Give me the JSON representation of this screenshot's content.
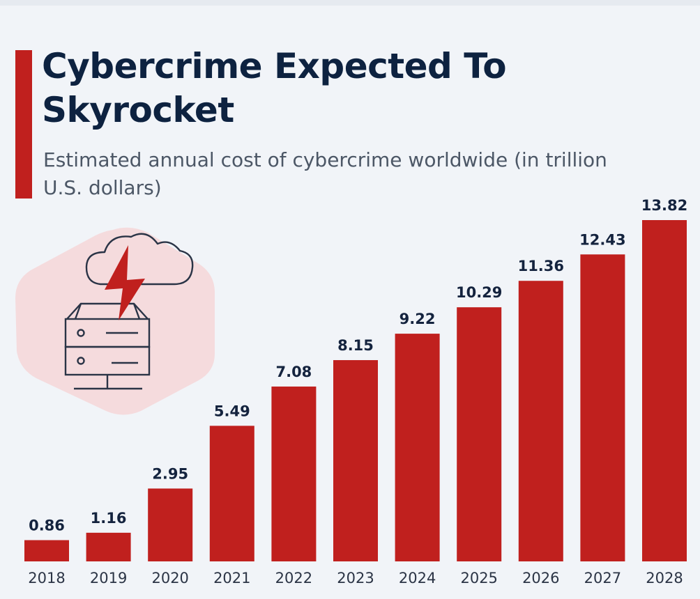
{
  "header": {
    "title": "Cybercrime Expected To Skyrocket",
    "subtitle": "Estimated annual cost of cybercrime worldwide (in trillion U.S. dollars)"
  },
  "colors": {
    "bar": "#c0201e",
    "accent": "#c0201e",
    "title": "#0d2240",
    "background": "#f1f4f8"
  },
  "illustration": {
    "icon": "cloud-server-lightning-icon"
  },
  "chart_data": {
    "type": "bar",
    "title": "Cybercrime Expected To Skyrocket",
    "subtitle": "Estimated annual cost of cybercrime worldwide (in trillion U.S. dollars)",
    "categories": [
      "2018",
      "2019",
      "2020",
      "2021",
      "2022",
      "2023",
      "2024",
      "2025",
      "2026",
      "2027",
      "2028"
    ],
    "values": [
      0.86,
      1.16,
      2.95,
      5.49,
      7.08,
      8.15,
      9.22,
      10.29,
      11.36,
      12.43,
      13.82
    ],
    "value_labels": [
      "0.86",
      "1.16",
      "2.95",
      "5.49",
      "7.08",
      "8.15",
      "9.22",
      "10.29",
      "11.36",
      "12.43",
      "13.82"
    ],
    "xlabel": "",
    "ylabel": "",
    "ylim": [
      0,
      13.82
    ],
    "grid": false,
    "legend": "none"
  }
}
